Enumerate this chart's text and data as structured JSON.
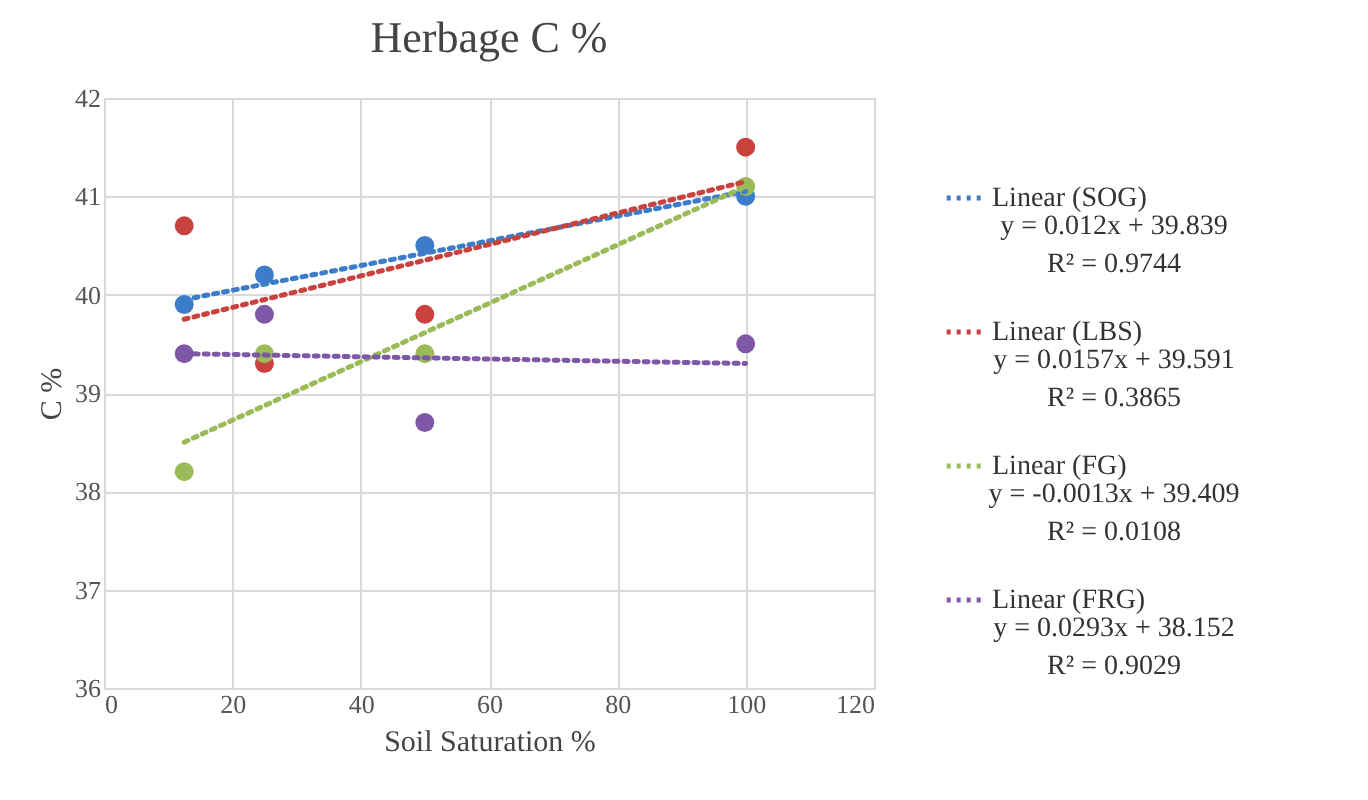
{
  "chart_data": {
    "type": "scatter",
    "title": "Herbage C %",
    "xlabel": "Soil Saturation %",
    "ylabel": "C %",
    "xlim": [
      0,
      120
    ],
    "xticks": [
      0,
      20,
      40,
      60,
      80,
      100,
      120
    ],
    "ylim": [
      36,
      42
    ],
    "yticks": [
      36,
      37,
      38,
      39,
      40,
      41,
      42
    ],
    "grid": true,
    "legend": "right",
    "annotations": [
      "y = 0.012x + 39.839",
      "R² = 0.9744",
      "y = 0.0157x + 39.591",
      "R² = 0.3865",
      "y = -0.0013x + 39.409",
      "R² = 0.0108",
      "y = 0.0293x + 38.152",
      "R² = 0.9029"
    ],
    "series": [
      {
        "marker": "circle",
        "color": "#3d7cc9",
        "x": [
          12.5,
          25,
          50,
          100
        ],
        "values": [
          39.9,
          40.2,
          40.5,
          41.0
        ]
      },
      {
        "marker": "circle",
        "color": "#c9433e",
        "x": [
          12.5,
          25,
          50,
          100
        ],
        "values": [
          40.7,
          39.3,
          39.8,
          41.5
        ]
      },
      {
        "marker": "circle",
        "color": "#9bbb59",
        "x": [
          12.5,
          25,
          50,
          100
        ],
        "values": [
          38.2,
          39.4,
          39.4,
          41.1
        ]
      },
      {
        "marker": "circle",
        "color": "#7e57a6",
        "x": [
          12.5,
          25,
          50,
          100
        ],
        "values": [
          39.4,
          39.8,
          38.7,
          39.5
        ]
      },
      {
        "type": "line",
        "name": "Linear (SOG)",
        "color": "#3d7cc9",
        "line_style": "dotted",
        "x": [
          12.5,
          100
        ],
        "values": [
          39.95,
          41.05
        ]
      },
      {
        "type": "line",
        "name": "Linear (LBS)",
        "color": "#c9433e",
        "line_style": "dotted",
        "x": [
          12.5,
          100
        ],
        "values": [
          39.75,
          41.15
        ]
      },
      {
        "type": "line",
        "name": "Linear (FG)",
        "color": "#9bbb59",
        "line_style": "dotted",
        "x": [
          12.5,
          100
        ],
        "values": [
          38.5,
          41.1
        ]
      },
      {
        "type": "line",
        "name": "Linear (FRG)",
        "color": "#7e57a6",
        "line_style": "dotted",
        "x": [
          12.5,
          100
        ],
        "values": [
          39.4,
          39.3
        ]
      }
    ]
  }
}
